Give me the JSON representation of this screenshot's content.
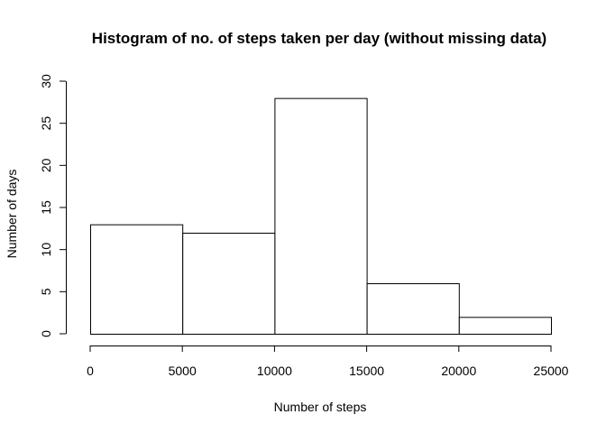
{
  "chart_data": {
    "type": "bar",
    "title": "Histogram of no. of steps taken per day (without missing data)",
    "xlabel": "Number of steps",
    "ylabel": "Number of days",
    "bins": [
      {
        "start": 0,
        "end": 5000,
        "count": 13
      },
      {
        "start": 5000,
        "end": 10000,
        "count": 12
      },
      {
        "start": 10000,
        "end": 15000,
        "count": 28
      },
      {
        "start": 15000,
        "end": 20000,
        "count": 6
      },
      {
        "start": 20000,
        "end": 25000,
        "count": 2
      }
    ],
    "xlim": [
      0,
      25000
    ],
    "ylim": [
      0,
      30
    ],
    "x_ticks": [
      0,
      5000,
      10000,
      15000,
      20000,
      25000
    ],
    "y_ticks": [
      0,
      5,
      10,
      15,
      20,
      25,
      30
    ],
    "x_tick_labels": [
      "0",
      "5000",
      "10000",
      "15000",
      "20000",
      "25000"
    ],
    "y_tick_labels": [
      "0",
      "5",
      "10",
      "15",
      "20",
      "25",
      "30"
    ],
    "grid": false,
    "bar_fill": "#ffffff",
    "bar_stroke": "#000000"
  }
}
